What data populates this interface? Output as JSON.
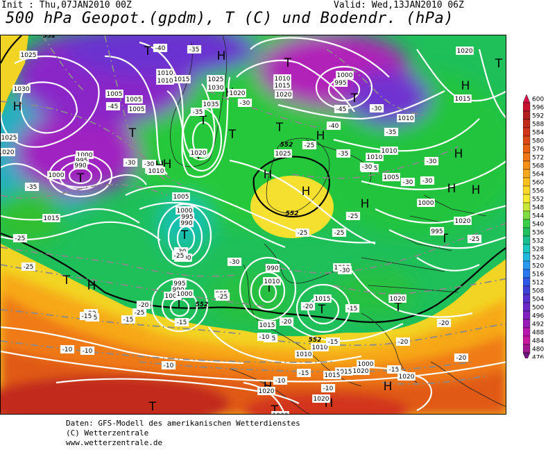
{
  "header": {
    "init": "Init : Thu,07JAN2010 00Z",
    "valid": "Valid: Wed,13JAN2010 06Z",
    "title": "500 hPa Geopot.(gpdm), T (C) und Bodendr. (hPa)"
  },
  "credits": {
    "line1": "Daten: GFS-Modell des amerikanischen Wetterdienstes",
    "line2": "(C) Wetterzentrale",
    "line3": "www.wetterzentrale.de"
  },
  "legend": {
    "values": [
      "600",
      "596",
      "592",
      "588",
      "584",
      "580",
      "576",
      "572",
      "568",
      "564",
      "560",
      "556",
      "552",
      "548",
      "544",
      "540",
      "536",
      "532",
      "528",
      "524",
      "520",
      "516",
      "512",
      "508",
      "504",
      "500",
      "496",
      "492",
      "488",
      "484",
      "480",
      "476"
    ],
    "colors": [
      "#d8104a",
      "#c8102e",
      "#b31f1f",
      "#c22a1a",
      "#d2351a",
      "#dd4a16",
      "#e86010",
      "#ef7814",
      "#f59018",
      "#f8a81c",
      "#fbc020",
      "#fcd82a",
      "#f5ea30",
      "#c8e838",
      "#80dc40",
      "#38d048",
      "#20c060",
      "#18c090",
      "#18c8c0",
      "#20b8e0",
      "#2898f0",
      "#2878f0",
      "#3058e8",
      "#4040d8",
      "#5830d0",
      "#6c28c8",
      "#8020c0",
      "#9a1cb8",
      "#b818b0",
      "#c818a0",
      "#a01890",
      "#701480"
    ]
  },
  "centers": [
    {
      "label": "H",
      "kind": "high"
    },
    {
      "label": "H",
      "kind": "high"
    },
    {
      "label": "H",
      "kind": "high"
    },
    {
      "label": "H",
      "kind": "high"
    },
    {
      "label": "H",
      "kind": "high"
    },
    {
      "label": "H",
      "kind": "high"
    },
    {
      "label": "H",
      "kind": "high"
    },
    {
      "label": "H",
      "kind": "high"
    },
    {
      "label": "H",
      "kind": "high"
    },
    {
      "label": "H",
      "kind": "high"
    },
    {
      "label": "H",
      "kind": "high"
    },
    {
      "label": "H",
      "kind": "high"
    },
    {
      "label": "H",
      "kind": "high"
    },
    {
      "label": "H",
      "kind": "high"
    },
    {
      "label": "H",
      "kind": "high"
    },
    {
      "label": "H",
      "kind": "high"
    },
    {
      "label": "H",
      "kind": "high"
    },
    {
      "label": "T",
      "kind": "low"
    },
    {
      "label": "T",
      "kind": "low"
    },
    {
      "label": "T",
      "kind": "low"
    },
    {
      "label": "T",
      "kind": "low"
    },
    {
      "label": "T",
      "kind": "low"
    },
    {
      "label": "T",
      "kind": "low"
    },
    {
      "label": "T",
      "kind": "low"
    },
    {
      "label": "T",
      "kind": "low"
    },
    {
      "label": "T",
      "kind": "low"
    },
    {
      "label": "T",
      "kind": "low"
    },
    {
      "label": "T",
      "kind": "low"
    },
    {
      "label": "T",
      "kind": "low"
    },
    {
      "label": "T",
      "kind": "low"
    },
    {
      "label": "T",
      "kind": "low"
    },
    {
      "label": "T",
      "kind": "low"
    },
    {
      "label": "T",
      "kind": "low"
    },
    {
      "label": "T",
      "kind": "low"
    },
    {
      "label": "T",
      "kind": "low"
    },
    {
      "label": "T",
      "kind": "low"
    }
  ],
  "pressure_labels": [
    "1025",
    "1030",
    "1025",
    "1020",
    "1000",
    "995",
    "990",
    "1000",
    "1005",
    "1010",
    "1010",
    "1005",
    "1005",
    "1010",
    "1015",
    "1025",
    "1030",
    "1035",
    "1020",
    "1020",
    "1010",
    "1005",
    "1000",
    "995",
    "990",
    "1015",
    "1000",
    "995",
    "990",
    "1005",
    "1000",
    "995",
    "990",
    "1010",
    "1025",
    "1015",
    "1010",
    "1015",
    "1020",
    "1000",
    "995",
    "1010",
    "1005",
    "1010",
    "1020",
    "1015",
    "1010",
    "1005",
    "1000",
    "995",
    "1020",
    "1010",
    "1015",
    "1020",
    "1020",
    "1020",
    "1020",
    "1010",
    "1015",
    "1020",
    "1020",
    "1010",
    "1015",
    "1020",
    "1000"
  ],
  "temp_labels": [
    "-40",
    "-35",
    "-45",
    "-35",
    "-30",
    "-30",
    "-30",
    "-35",
    "-35",
    "-30",
    "-25",
    "-25",
    "-30",
    "-35",
    "-45",
    "-40",
    "-30",
    "-30",
    "-30",
    "-25",
    "-25",
    "-30",
    "-25",
    "-30",
    "-30",
    "-25",
    "-25",
    "-25",
    "-25",
    "-25",
    "-20",
    "-20",
    "-20",
    "-20",
    "-15",
    "-15",
    "-15",
    "-15",
    "-15",
    "-15",
    "-10",
    "-15",
    "-10",
    "-10",
    "-20",
    "-20",
    "-20",
    "-15",
    "-15",
    "-10",
    "-10",
    "-10"
  ],
  "geo_labels": [
    "552",
    "552",
    "552",
    "552",
    "552"
  ]
}
